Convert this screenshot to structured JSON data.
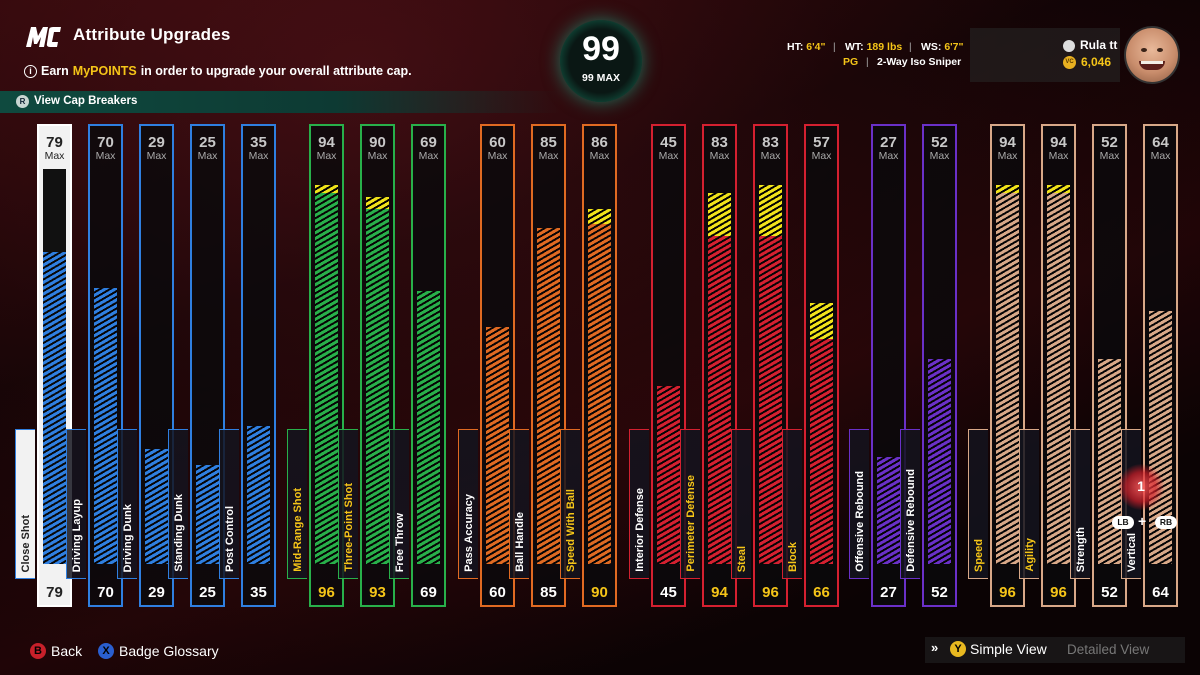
{
  "header": {
    "title": "Attribute Upgrades",
    "subtitle_pre": "Earn",
    "subtitle_highlight": "MyPOINTS",
    "subtitle_post": "in order to upgrade your overall attribute cap.",
    "cap_breakers_label": "View Cap Breakers",
    "overall": "99",
    "overall_max": "99 MAX"
  },
  "player": {
    "ht_label": "HT:",
    "ht": "6'4\"",
    "wt_label": "WT:",
    "wt": "189 lbs",
    "ws_label": "WS:",
    "ws": "6'7\"",
    "position": "PG",
    "archetype": "2-Way Iso Sniper",
    "gamertag": "Rula tt",
    "vc": "6,046"
  },
  "max_label": "Max",
  "attributes": [
    {
      "name": "Close Shot",
      "current": 79,
      "max": 79,
      "cap": 0,
      "color": "#2f7fe0",
      "selected": true
    },
    {
      "name": "Driving Layup",
      "current": 70,
      "max": 70,
      "cap": 0,
      "color": "#2f7fe0"
    },
    {
      "name": "Driving Dunk",
      "current": 29,
      "max": 29,
      "cap": 0,
      "color": "#2f7fe0"
    },
    {
      "name": "Standing Dunk",
      "current": 25,
      "max": 25,
      "cap": 0,
      "color": "#2f7fe0"
    },
    {
      "name": "Post Control",
      "current": 35,
      "max": 35,
      "cap": 0,
      "color": "#2f7fe0"
    },
    {
      "name": "Mid-Range Shot",
      "current": 96,
      "max": 94,
      "cap": 2,
      "color": "#28b04a"
    },
    {
      "name": "Three-Point Shot",
      "current": 93,
      "max": 90,
      "cap": 3,
      "color": "#28b04a"
    },
    {
      "name": "Free Throw",
      "current": 69,
      "max": 69,
      "cap": 0,
      "color": "#28b04a"
    },
    {
      "name": "Pass Accuracy",
      "current": 60,
      "max": 60,
      "cap": 0,
      "color": "#e06a22"
    },
    {
      "name": "Ball Handle",
      "current": 85,
      "max": 85,
      "cap": 0,
      "color": "#e06a22"
    },
    {
      "name": "Speed With Ball",
      "current": 90,
      "max": 86,
      "cap": 4,
      "color": "#e06a22"
    },
    {
      "name": "Interior Defense",
      "current": 45,
      "max": 45,
      "cap": 0,
      "color": "#d42030"
    },
    {
      "name": "Perimeter Defense",
      "current": 94,
      "max": 83,
      "cap": 11,
      "color": "#d42030"
    },
    {
      "name": "Steal",
      "current": 96,
      "max": 83,
      "cap": 13,
      "color": "#d42030"
    },
    {
      "name": "Block",
      "current": 66,
      "max": 57,
      "cap": 9,
      "color": "#d42030"
    },
    {
      "name": "Offensive Rebound",
      "current": 27,
      "max": 27,
      "cap": 0,
      "color": "#6a30c8"
    },
    {
      "name": "Defensive Rebound",
      "current": 52,
      "max": 52,
      "cap": 0,
      "color": "#6a30c8"
    },
    {
      "name": "Speed",
      "current": 96,
      "max": 94,
      "cap": 2,
      "color": "#d8a888"
    },
    {
      "name": "Agility",
      "current": 96,
      "max": 94,
      "cap": 2,
      "color": "#d8a888"
    },
    {
      "name": "Strength",
      "current": 52,
      "max": 52,
      "cap": 0,
      "color": "#d8a888"
    },
    {
      "name": "Vertical",
      "current": 64,
      "max": 64,
      "cap": 0,
      "color": "#d8a888"
    }
  ],
  "cursor": {
    "value": "1",
    "lb": "LB",
    "plus": "+",
    "rb": "RB"
  },
  "footer": {
    "back_btn": "B",
    "back_label": "Back",
    "glossary_btn": "X",
    "glossary_label": "Badge Glossary",
    "simple_btn": "Y",
    "simple_label": "Simple View",
    "detailed_label": "Detailed View",
    "chevron": "»"
  },
  "colors": {
    "accent_teal": "#16c49a",
    "highlight_yellow": "#f5c518",
    "cap_yellow": "#f0e21a"
  }
}
